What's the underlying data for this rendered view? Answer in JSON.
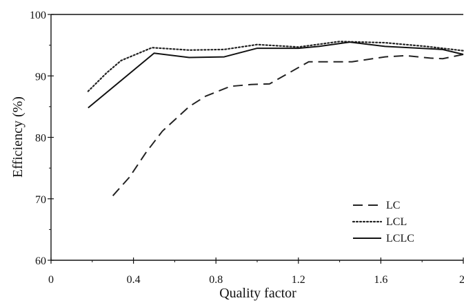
{
  "chart_data": {
    "type": "line",
    "xlabel": "Quality factor",
    "ylabel": "Efficiency (%)",
    "xlim": [
      0,
      2
    ],
    "ylim": [
      60,
      100
    ],
    "x_ticks": [
      0,
      0.4,
      0.8,
      1.2,
      1.6,
      2
    ],
    "x_tick_labels": [
      "0",
      "0.4",
      "0.8",
      "1.2",
      "1.6",
      "2"
    ],
    "y_ticks": [
      60,
      70,
      80,
      90,
      100
    ],
    "y_tick_labels": [
      "60",
      "70",
      "80",
      "90",
      "100"
    ],
    "legend_position": "bottom-right",
    "grid": false,
    "series": [
      {
        "name": "LC",
        "style": "dashed",
        "color": "#222222",
        "points": [
          [
            0.3,
            70.5
          ],
          [
            0.38,
            73.5
          ],
          [
            0.46,
            77.5
          ],
          [
            0.54,
            81
          ],
          [
            0.67,
            85
          ],
          [
            0.75,
            86.7
          ],
          [
            0.87,
            88.3
          ],
          [
            0.97,
            88.6
          ],
          [
            1.06,
            88.7
          ],
          [
            1.25,
            92.3
          ],
          [
            1.46,
            92.3
          ],
          [
            1.62,
            93.1
          ],
          [
            1.72,
            93.3
          ],
          [
            1.84,
            92.9
          ],
          [
            1.9,
            92.8
          ],
          [
            2.0,
            93.5
          ]
        ]
      },
      {
        "name": "LCL",
        "style": "dotted",
        "color": "#222222",
        "points": [
          [
            0.18,
            87.5
          ],
          [
            0.27,
            90.5
          ],
          [
            0.34,
            92.5
          ],
          [
            0.49,
            94.6
          ],
          [
            0.67,
            94.2
          ],
          [
            0.84,
            94.3
          ],
          [
            1.0,
            95.1
          ],
          [
            1.2,
            94.7
          ],
          [
            1.4,
            95.6
          ],
          [
            1.62,
            95.4
          ],
          [
            1.82,
            94.8
          ],
          [
            2.0,
            94.1
          ]
        ]
      },
      {
        "name": "LCLC",
        "style": "solid",
        "color": "#111111",
        "points": [
          [
            0.18,
            84.8
          ],
          [
            0.5,
            93.7
          ],
          [
            0.67,
            93.0
          ],
          [
            0.84,
            93.1
          ],
          [
            1.0,
            94.5
          ],
          [
            1.2,
            94.5
          ],
          [
            1.3,
            94.8
          ],
          [
            1.45,
            95.5
          ],
          [
            1.62,
            94.8
          ],
          [
            1.9,
            94.3
          ],
          [
            2.0,
            93.5
          ]
        ]
      }
    ]
  }
}
